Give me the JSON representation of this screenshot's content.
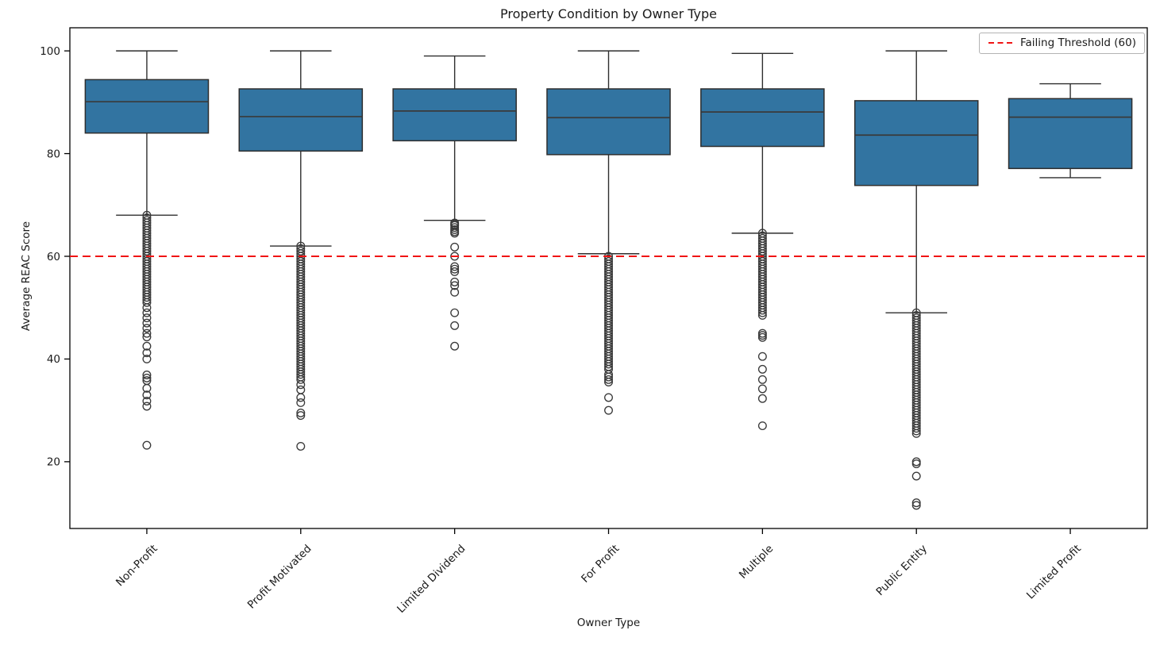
{
  "chart_data": {
    "type": "boxplot",
    "title": "Property Condition by Owner Type",
    "xlabel": "Owner Type",
    "ylabel": "Average REAC Score",
    "ylim": [
      7,
      104.5
    ],
    "yticks": [
      20,
      40,
      60,
      80,
      100
    ],
    "grid": false,
    "legend_position": "upper right",
    "categories": [
      "Non-Profit",
      "Profit Motivated",
      "Limited Dividend",
      "For Profit",
      "Multiple",
      "Public Entity",
      "Limited Profit"
    ],
    "threshold": {
      "value": 60,
      "label": "Failing Threshold (60)",
      "color": "#f01414",
      "style": "dashed"
    },
    "colors": {
      "box_fill": "#3274a1",
      "box_edge": "#2e2e2e",
      "median": "#3a3a3a",
      "whisker": "#2e2e2e",
      "outlier_edge": "#3a3a3a",
      "axis": "#000000",
      "text": "#1a1a1a"
    },
    "boxes": [
      {
        "category": "Non-Profit",
        "low": 68,
        "q1": 84,
        "median": 90.1,
        "q3": 94.4,
        "high": 100,
        "outliers": [
          68,
          67.5,
          67,
          66.5,
          66,
          65.5,
          65,
          64.5,
          64,
          63.5,
          63,
          62.5,
          62,
          61.5,
          61,
          60.5,
          60,
          59.5,
          59,
          58.5,
          58,
          57.5,
          57,
          56.5,
          56,
          55.5,
          55,
          54.5,
          54,
          53.5,
          53,
          52.5,
          52,
          51.5,
          51,
          50,
          49,
          48,
          47,
          46,
          45,
          44.3,
          42.5,
          41.2,
          40,
          36.9,
          36.3,
          35.8,
          34.3,
          33,
          31.8,
          30.8,
          23.2
        ]
      },
      {
        "category": "Profit Motivated",
        "low": 62,
        "q1": 80.5,
        "median": 87.2,
        "q3": 92.6,
        "high": 100,
        "outliers": [
          62,
          61.5,
          61,
          60.5,
          60,
          59.5,
          59,
          58.5,
          58,
          57.5,
          57,
          56.5,
          56,
          55.5,
          55,
          54.5,
          54,
          53.5,
          53,
          52.5,
          52,
          51.5,
          51,
          50.5,
          50,
          49.5,
          49,
          48.5,
          48,
          47.5,
          47,
          46.5,
          46,
          45.5,
          45,
          44.5,
          44,
          43.5,
          43,
          42.5,
          42,
          41.5,
          41,
          40.5,
          40,
          39.5,
          39,
          38.5,
          38,
          37.5,
          37,
          36.5,
          36,
          35,
          34,
          32.5,
          31.5,
          29.5,
          29,
          23
        ]
      },
      {
        "category": "Limited Dividend",
        "low": 67,
        "q1": 82.5,
        "median": 88.3,
        "q3": 92.6,
        "high": 99,
        "outliers": [
          66.5,
          66.2,
          66,
          65.6,
          65.2,
          64.8,
          64.5,
          61.8,
          60,
          58,
          57.5,
          57,
          55,
          54.3,
          53,
          49,
          46.5,
          42.5
        ]
      },
      {
        "category": "For Profit",
        "low": 60.5,
        "q1": 79.8,
        "median": 87,
        "q3": 92.6,
        "high": 100,
        "outliers": [
          60,
          59.5,
          59,
          58.5,
          58,
          57.5,
          57,
          56.5,
          56,
          55.5,
          55,
          54.5,
          54,
          53.5,
          53,
          52.5,
          52,
          51.5,
          51,
          50.5,
          50,
          49.5,
          49,
          48.5,
          48,
          47.5,
          47,
          46.5,
          46,
          45.5,
          45,
          44.5,
          44,
          43.5,
          43,
          42.5,
          42,
          41.5,
          41,
          40.5,
          40,
          39.5,
          39,
          38.5,
          38,
          37,
          36.5,
          36,
          35.5,
          32.5,
          30
        ]
      },
      {
        "category": "Multiple",
        "low": 64.5,
        "q1": 81.4,
        "median": 88.1,
        "q3": 92.6,
        "high": 99.5,
        "outliers": [
          64.5,
          64,
          63.5,
          63,
          62.5,
          62,
          61.5,
          61,
          60.5,
          60,
          59.5,
          59,
          58.5,
          58,
          57.5,
          57,
          56.5,
          56,
          55.5,
          55,
          54.5,
          54,
          53.5,
          53,
          52.5,
          52,
          51.5,
          51,
          50.5,
          50,
          49.5,
          49,
          48.5,
          45,
          44.6,
          44.2,
          40.5,
          38,
          36,
          34.2,
          32.3,
          27
        ]
      },
      {
        "category": "Public Entity",
        "low": 49,
        "q1": 73.8,
        "median": 83.6,
        "q3": 90.3,
        "high": 100,
        "outliers": [
          49,
          48.5,
          48,
          47.5,
          47,
          46.5,
          46,
          45.5,
          45,
          44.5,
          44,
          43.5,
          43,
          42.5,
          42,
          41.5,
          41,
          40.5,
          40,
          39.5,
          39,
          38.5,
          38,
          37.5,
          37,
          36.5,
          36,
          35.5,
          35,
          34.5,
          34,
          33.5,
          33,
          32.5,
          32,
          31.5,
          31,
          30.5,
          30,
          29.5,
          29,
          28.5,
          28,
          27.5,
          27,
          26.5,
          26,
          25.5,
          20,
          19.6,
          17.2,
          12,
          11.5
        ]
      },
      {
        "category": "Limited Profit",
        "low": 75.3,
        "q1": 77.1,
        "median": 87.1,
        "q3": 90.7,
        "high": 93.6,
        "outliers": []
      }
    ]
  }
}
